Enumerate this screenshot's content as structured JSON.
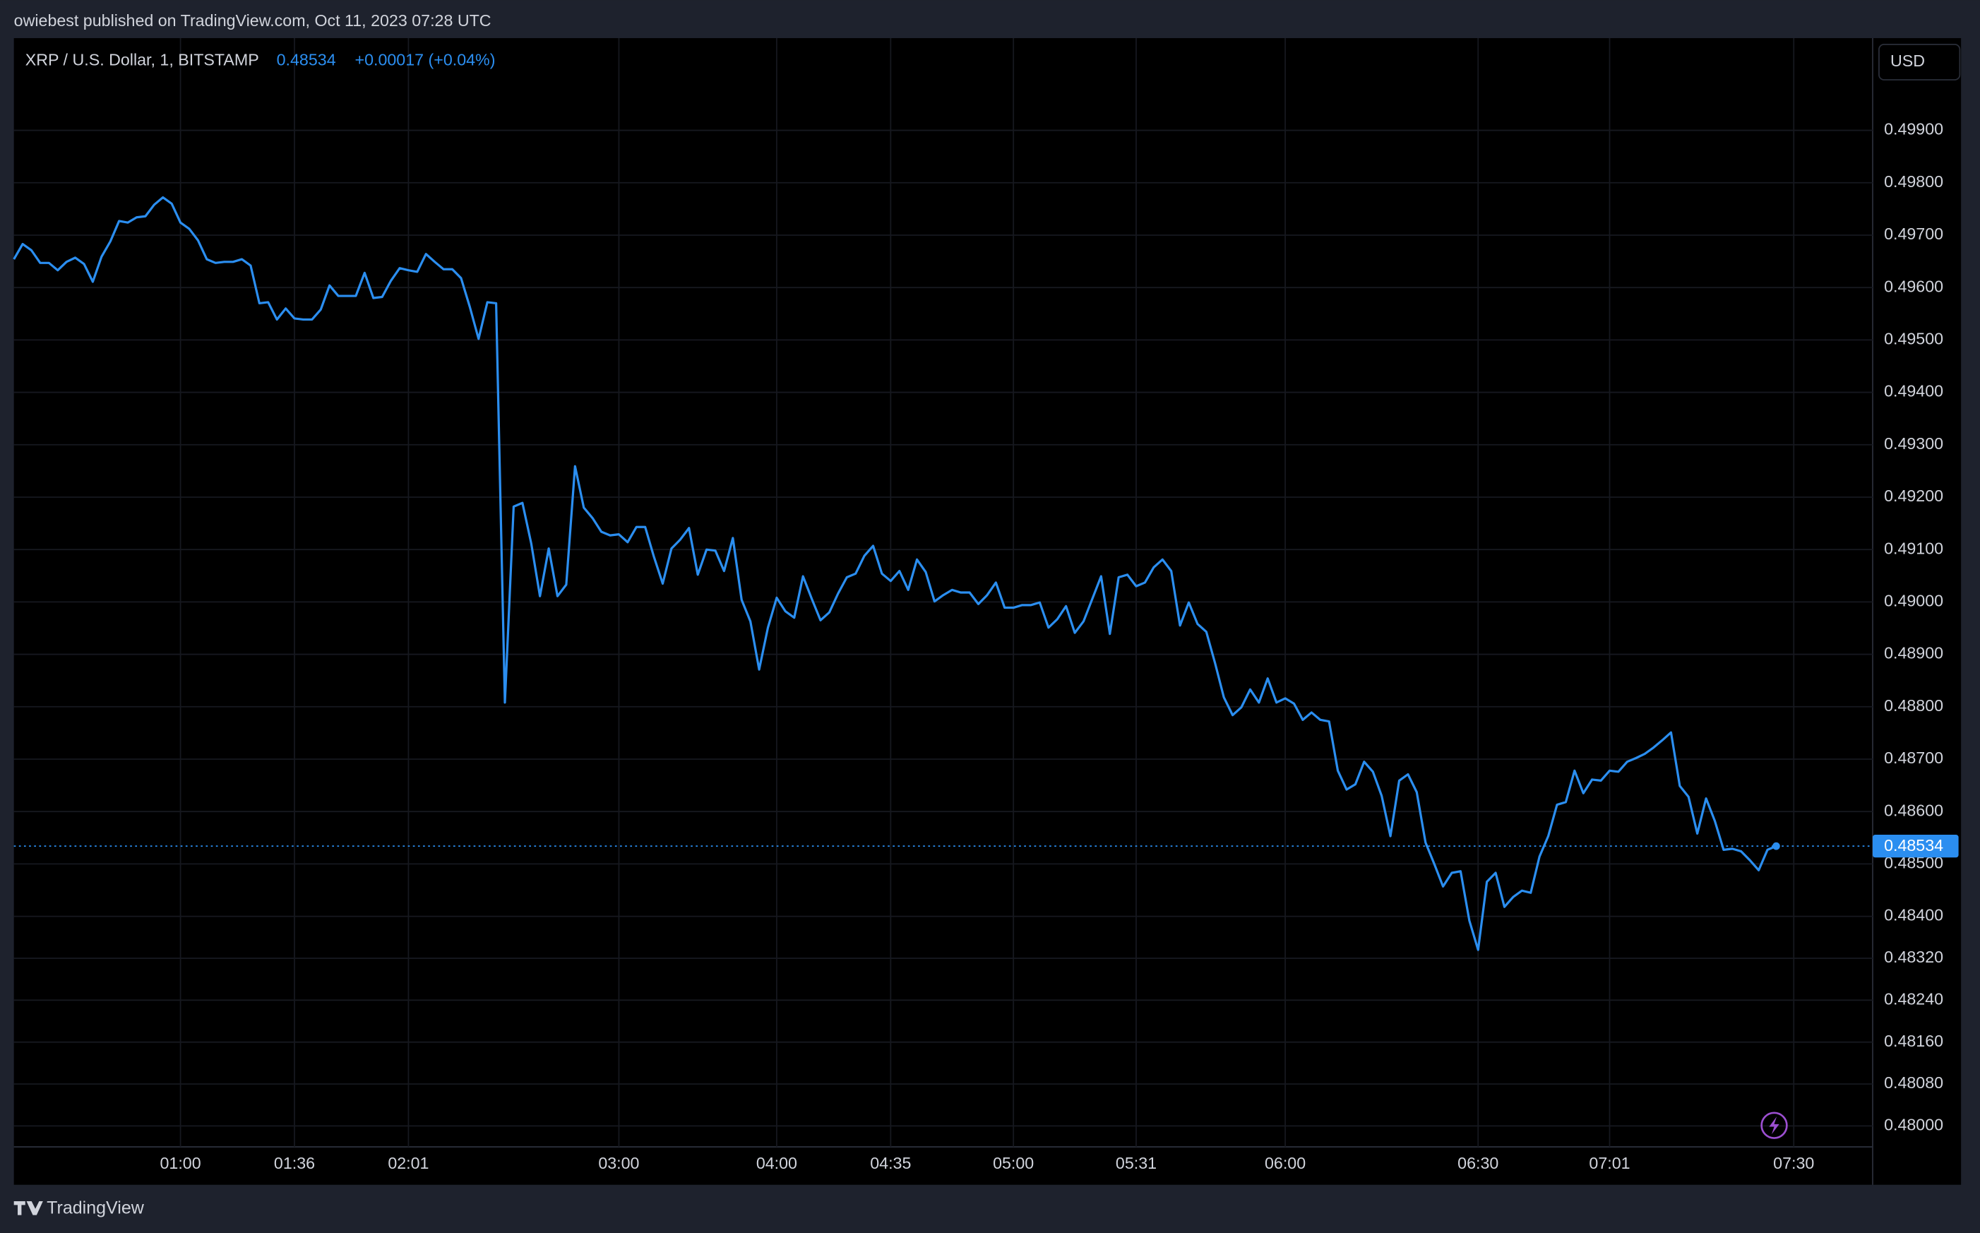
{
  "header": {
    "published": "owiebest published on TradingView.com, Oct 11, 2023 07:28 UTC"
  },
  "footer": {
    "brand": "TradingView"
  },
  "chart_data": {
    "type": "line",
    "title": "XRP / U.S. Dollar, 1, BITSTAMP",
    "last_label": "0.48534",
    "change_label": "+0.00017 (+0.04%)",
    "currency": "USD",
    "grid": true,
    "xlim": [
      0,
      212
    ],
    "xticks": [
      {
        "value": 19,
        "label": "01:00"
      },
      {
        "value": 32,
        "label": "01:36"
      },
      {
        "value": 45,
        "label": "02:01"
      },
      {
        "value": 69,
        "label": "03:00"
      },
      {
        "value": 87,
        "label": "04:00"
      },
      {
        "value": 100,
        "label": "04:35"
      },
      {
        "value": 114,
        "label": "05:00"
      },
      {
        "value": 128,
        "label": "05:31"
      },
      {
        "value": 145,
        "label": "06:00"
      },
      {
        "value": 167,
        "label": "06:30"
      },
      {
        "value": 182,
        "label": "07:01"
      },
      {
        "value": 203,
        "label": "07:30"
      }
    ],
    "ylim": [
      0.4796,
      0.50076
    ],
    "yticks": [
      {
        "value": 0.499,
        "label": "0.49900"
      },
      {
        "value": 0.498,
        "label": "0.49800"
      },
      {
        "value": 0.497,
        "label": "0.49700"
      },
      {
        "value": 0.496,
        "label": "0.49600"
      },
      {
        "value": 0.495,
        "label": "0.49500"
      },
      {
        "value": 0.494,
        "label": "0.49400"
      },
      {
        "value": 0.493,
        "label": "0.49300"
      },
      {
        "value": 0.492,
        "label": "0.49200"
      },
      {
        "value": 0.491,
        "label": "0.49100"
      },
      {
        "value": 0.49,
        "label": "0.49000"
      },
      {
        "value": 0.489,
        "label": "0.48900"
      },
      {
        "value": 0.488,
        "label": "0.48800"
      },
      {
        "value": 0.487,
        "label": "0.48700"
      },
      {
        "value": 0.486,
        "label": "0.48600"
      },
      {
        "value": 0.485,
        "label": "0.48500"
      },
      {
        "value": 0.484,
        "label": "0.48400"
      },
      {
        "value": 0.4832,
        "label": "0.48320"
      },
      {
        "value": 0.4824,
        "label": "0.48240"
      },
      {
        "value": 0.4816,
        "label": "0.48160"
      },
      {
        "value": 0.4808,
        "label": "0.48080"
      },
      {
        "value": 0.48,
        "label": "0.48000"
      }
    ],
    "series": [
      {
        "color": "#2b8ef0",
        "values": [
          0.49654,
          0.49683,
          0.49671,
          0.49647,
          0.49647,
          0.49633,
          0.49649,
          0.49657,
          0.49645,
          0.49611,
          0.49659,
          0.49688,
          0.49727,
          0.49724,
          0.49734,
          0.49736,
          0.49758,
          0.49772,
          0.4976,
          0.49724,
          0.49712,
          0.4969,
          0.49654,
          0.49647,
          0.49649,
          0.49649,
          0.49654,
          0.49642,
          0.4957,
          0.49572,
          0.49539,
          0.4956,
          0.49541,
          0.49539,
          0.49539,
          0.49558,
          0.49604,
          0.49584,
          0.49584,
          0.49584,
          0.49628,
          0.4958,
          0.49582,
          0.49613,
          0.49637,
          0.49633,
          0.4963,
          0.49664,
          0.49649,
          0.49635,
          0.49635,
          0.49618,
          0.49563,
          0.49502,
          0.49572,
          0.4957,
          0.48808,
          0.49182,
          0.49189,
          0.49112,
          0.49011,
          0.49102,
          0.49011,
          0.49033,
          0.49259,
          0.4918,
          0.4916,
          0.49134,
          0.49127,
          0.49129,
          0.49114,
          0.49143,
          0.49143,
          0.49086,
          0.49035,
          0.49102,
          0.49119,
          0.49141,
          0.49052,
          0.491,
          0.49098,
          0.49059,
          0.49122,
          0.49004,
          0.48963,
          0.48871,
          0.48951,
          0.49008,
          0.48982,
          0.4897,
          0.49049,
          0.49006,
          0.48965,
          0.4898,
          0.49016,
          0.49047,
          0.49054,
          0.49088,
          0.49107,
          0.49054,
          0.4904,
          0.49059,
          0.49023,
          0.49081,
          0.49057,
          0.49001,
          0.49013,
          0.49023,
          0.49018,
          0.49018,
          0.48996,
          0.49013,
          0.49037,
          0.48989,
          0.48989,
          0.48994,
          0.48994,
          0.48999,
          0.48951,
          0.48967,
          0.48992,
          0.48941,
          0.48963,
          0.49006,
          0.49049,
          0.48939,
          0.49047,
          0.49052,
          0.4903,
          0.49037,
          0.49066,
          0.49081,
          0.49059,
          0.48955,
          0.48999,
          0.48958,
          0.48943,
          0.48883,
          0.48818,
          0.48784,
          0.48799,
          0.48833,
          0.48808,
          0.48854,
          0.48808,
          0.48816,
          0.48806,
          0.48775,
          0.48789,
          0.48775,
          0.48772,
          0.48678,
          0.48642,
          0.48652,
          0.48695,
          0.48676,
          0.4863,
          0.48553,
          0.48659,
          0.48671,
          0.48637,
          0.48541,
          0.485,
          0.48457,
          0.48483,
          0.48486,
          0.48392,
          0.48336,
          0.48466,
          0.48483,
          0.48418,
          0.48437,
          0.48449,
          0.48445,
          0.48514,
          0.48553,
          0.48613,
          0.48618,
          0.48678,
          0.48635,
          0.48661,
          0.48659,
          0.48678,
          0.48676,
          0.48695,
          0.48702,
          0.4871,
          0.48722,
          0.48736,
          0.48751,
          0.48649,
          0.48628,
          0.48558,
          0.48625,
          0.48582,
          0.48527,
          0.48529,
          0.48524,
          0.48507,
          0.48488,
          0.48527,
          0.48534
        ]
      }
    ]
  }
}
